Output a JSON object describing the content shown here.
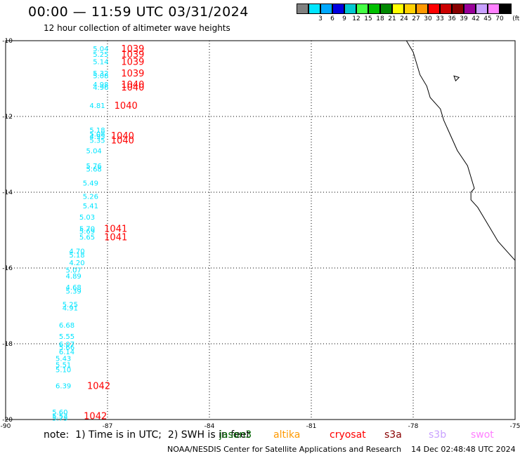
{
  "title": "00:00 — 11:59 UTC 03/31/2024",
  "subtitle": "12 hour collection of altimeter wave heights",
  "color_scale": {
    "unit_label": "(ft)",
    "bins": [
      {
        "color": "#808080",
        "label": ""
      },
      {
        "color": "#00e5ff",
        "label": "3"
      },
      {
        "color": "#00a8ff",
        "label": "6"
      },
      {
        "color": "#0000e0",
        "label": "9"
      },
      {
        "color": "#00c8d0",
        "label": "12"
      },
      {
        "color": "#44ff44",
        "label": "15"
      },
      {
        "color": "#00c000",
        "label": "18"
      },
      {
        "color": "#008800",
        "label": "21"
      },
      {
        "color": "#ffff00",
        "label": "24"
      },
      {
        "color": "#ffd000",
        "label": "27"
      },
      {
        "color": "#ff9900",
        "label": "30"
      },
      {
        "color": "#ff0000",
        "label": "33"
      },
      {
        "color": "#cc0000",
        "label": "36"
      },
      {
        "color": "#880000",
        "label": "39"
      },
      {
        "color": "#990099",
        "label": "42"
      },
      {
        "color": "#c8a0ff",
        "label": "45"
      },
      {
        "color": "#ff80ff",
        "label": "70"
      },
      {
        "color": "#000000",
        "label": ""
      }
    ]
  },
  "map_axes": {
    "lon_range": [
      -90,
      -75
    ],
    "lat_range": [
      -20,
      -10
    ],
    "lon_ticks": [
      {
        "value": -90,
        "label": "-90"
      },
      {
        "value": -87,
        "label": "-87"
      },
      {
        "value": -84,
        "label": "-84"
      },
      {
        "value": -81,
        "label": "-81"
      },
      {
        "value": -78,
        "label": "-78"
      },
      {
        "value": -75,
        "label": "-75"
      }
    ],
    "lat_ticks": [
      {
        "value": -10,
        "label": "-10"
      },
      {
        "value": -12,
        "label": "-12"
      },
      {
        "value": -14,
        "label": "-14"
      },
      {
        "value": -16,
        "label": "-16"
      },
      {
        "value": -18,
        "label": "-18"
      },
      {
        "value": -20,
        "label": "-20"
      }
    ]
  },
  "coastline": {
    "main": [
      [
        -78.2,
        -10.0
      ],
      [
        -78.0,
        -10.3
      ],
      [
        -77.9,
        -10.6
      ],
      [
        -77.8,
        -10.9
      ],
      [
        -77.6,
        -11.2
      ],
      [
        -77.5,
        -11.5
      ],
      [
        -77.2,
        -11.8
      ],
      [
        -77.1,
        -12.1
      ],
      [
        -76.9,
        -12.5
      ],
      [
        -76.7,
        -12.9
      ],
      [
        -76.4,
        -13.3
      ],
      [
        -76.3,
        -13.6
      ],
      [
        -76.2,
        -13.9
      ],
      [
        -76.3,
        -14.0
      ],
      [
        -76.3,
        -14.2
      ],
      [
        -76.1,
        -14.4
      ],
      [
        -75.9,
        -14.7
      ],
      [
        -75.7,
        -15.0
      ],
      [
        -75.5,
        -15.3
      ],
      [
        -75.2,
        -15.6
      ],
      [
        -75.0,
        -15.8
      ]
    ],
    "island": [
      [
        -76.8,
        -10.93
      ],
      [
        -76.65,
        -10.97
      ],
      [
        -76.75,
        -11.06
      ]
    ]
  },
  "wave_obs": [
    {
      "lon": -87.2,
      "lat": -10.2,
      "swh": "5.04",
      "color": "#00e5ff"
    },
    {
      "lon": -87.2,
      "lat": -10.35,
      "swh": "5.25",
      "color": "#00e5ff"
    },
    {
      "lon": -87.2,
      "lat": -10.55,
      "swh": "5.14",
      "color": "#00e5ff"
    },
    {
      "lon": -87.2,
      "lat": -10.85,
      "swh": "5.32",
      "color": "#00e5ff"
    },
    {
      "lon": -87.2,
      "lat": -10.92,
      "swh": "5.08",
      "color": "#00e5ff"
    },
    {
      "lon": -87.2,
      "lat": -11.15,
      "swh": "4.98",
      "color": "#00e5ff"
    },
    {
      "lon": -87.2,
      "lat": -11.22,
      "swh": "4.96",
      "color": "#00e5ff"
    },
    {
      "lon": -87.3,
      "lat": -11.7,
      "swh": "4.81",
      "color": "#00e5ff"
    },
    {
      "lon": -87.3,
      "lat": -12.35,
      "swh": "5.18",
      "color": "#00e5ff"
    },
    {
      "lon": -87.3,
      "lat": -12.45,
      "swh": "5.08",
      "color": "#00e5ff"
    },
    {
      "lon": -87.3,
      "lat": -12.52,
      "swh": "4.95",
      "color": "#00e5ff"
    },
    {
      "lon": -87.3,
      "lat": -12.62,
      "swh": "5.35",
      "color": "#00e5ff"
    },
    {
      "lon": -87.4,
      "lat": -12.9,
      "swh": "5.04",
      "color": "#00e5ff"
    },
    {
      "lon": -87.4,
      "lat": -13.3,
      "swh": "5.76",
      "color": "#00e5ff"
    },
    {
      "lon": -87.4,
      "lat": -13.38,
      "swh": "5.68",
      "color": "#00e5ff"
    },
    {
      "lon": -87.5,
      "lat": -13.75,
      "swh": "5.49",
      "color": "#00e5ff"
    },
    {
      "lon": -87.5,
      "lat": -14.1,
      "swh": "5.26",
      "color": "#00e5ff"
    },
    {
      "lon": -87.5,
      "lat": -14.35,
      "swh": "5.41",
      "color": "#00e5ff"
    },
    {
      "lon": -87.6,
      "lat": -14.65,
      "swh": "5.03",
      "color": "#00e5ff"
    },
    {
      "lon": -87.6,
      "lat": -14.95,
      "swh": "5.70",
      "color": "#00e5ff"
    },
    {
      "lon": -87.6,
      "lat": -15.02,
      "swh": "5.69",
      "color": "#00e5ff"
    },
    {
      "lon": -87.6,
      "lat": -15.18,
      "swh": "5.65",
      "color": "#00e5ff"
    },
    {
      "lon": -87.9,
      "lat": -15.55,
      "swh": "4.70",
      "color": "#00e5ff"
    },
    {
      "lon": -87.9,
      "lat": -15.65,
      "swh": "5.18",
      "color": "#00e5ff"
    },
    {
      "lon": -87.9,
      "lat": -15.85,
      "swh": "4.20",
      "color": "#00e5ff"
    },
    {
      "lon": -88.0,
      "lat": -16.05,
      "swh": "5.07",
      "color": "#00e5ff"
    },
    {
      "lon": -88.0,
      "lat": -16.2,
      "swh": "4.89",
      "color": "#00e5ff"
    },
    {
      "lon": -88.0,
      "lat": -16.5,
      "swh": "4.68",
      "color": "#00e5ff"
    },
    {
      "lon": -88.0,
      "lat": -16.6,
      "swh": "5.39",
      "color": "#00e5ff"
    },
    {
      "lon": -88.1,
      "lat": -16.95,
      "swh": "5.25",
      "color": "#00e5ff"
    },
    {
      "lon": -88.1,
      "lat": -17.05,
      "swh": "4.91",
      "color": "#00e5ff"
    },
    {
      "lon": -88.2,
      "lat": -17.5,
      "swh": "6.68",
      "color": "#00e5ff"
    },
    {
      "lon": -88.2,
      "lat": -17.8,
      "swh": "5.55",
      "color": "#00e5ff"
    },
    {
      "lon": -88.2,
      "lat": -18.0,
      "swh": "6.07",
      "color": "#00e5ff"
    },
    {
      "lon": -88.2,
      "lat": -18.08,
      "swh": "5.66",
      "color": "#00e5ff"
    },
    {
      "lon": -88.2,
      "lat": -18.2,
      "swh": "6.14",
      "color": "#00e5ff"
    },
    {
      "lon": -88.3,
      "lat": -18.38,
      "swh": "5.43",
      "color": "#00e5ff"
    },
    {
      "lon": -88.3,
      "lat": -18.55,
      "swh": "5.51",
      "color": "#00e5ff"
    },
    {
      "lon": -88.3,
      "lat": -18.68,
      "swh": "5.10",
      "color": "#00e5ff"
    },
    {
      "lon": -88.3,
      "lat": -19.1,
      "swh": "6.39",
      "color": "#00e5ff"
    },
    {
      "lon": -88.4,
      "lat": -19.8,
      "swh": "5.60",
      "color": "#00e5ff"
    },
    {
      "lon": -88.4,
      "lat": -19.9,
      "swh": "5.53",
      "color": "#00e5ff"
    },
    {
      "lon": -88.4,
      "lat": -19.95,
      "swh": "5.75",
      "color": "#00e5ff"
    }
  ],
  "pass_labels": [
    {
      "lon": -86.6,
      "lat": -10.2,
      "text": "1039",
      "color": "#ff0000"
    },
    {
      "lon": -86.6,
      "lat": -10.35,
      "text": "1039",
      "color": "#ff0000"
    },
    {
      "lon": -86.6,
      "lat": -10.55,
      "text": "1039",
      "color": "#ff0000"
    },
    {
      "lon": -86.6,
      "lat": -10.85,
      "text": "1039",
      "color": "#ff0000"
    },
    {
      "lon": -86.6,
      "lat": -11.15,
      "text": "1040",
      "color": "#ff0000"
    },
    {
      "lon": -86.6,
      "lat": -11.22,
      "text": "1040",
      "color": "#ff0000"
    },
    {
      "lon": -86.8,
      "lat": -11.7,
      "text": "1040",
      "color": "#ff0000"
    },
    {
      "lon": -86.9,
      "lat": -12.5,
      "text": "1040",
      "color": "#ff0000"
    },
    {
      "lon": -86.9,
      "lat": -12.62,
      "text": "1040",
      "color": "#ff0000"
    },
    {
      "lon": -87.1,
      "lat": -14.95,
      "text": "1041",
      "color": "#ff0000"
    },
    {
      "lon": -87.1,
      "lat": -15.18,
      "text": "1041",
      "color": "#ff0000"
    },
    {
      "lon": -87.6,
      "lat": -19.1,
      "text": "1042",
      "color": "#ff0000"
    },
    {
      "lon": -87.7,
      "lat": -19.9,
      "text": "1042",
      "color": "#ff0000"
    }
  ],
  "footer": {
    "note": "note:  1) Time is in UTC;  2) SWH is in feet",
    "satellites": [
      {
        "name": "jason3",
        "color": "#006600"
      },
      {
        "name": "altika",
        "color": "#ff9900"
      },
      {
        "name": "cryosat",
        "color": "#ff0000"
      },
      {
        "name": "s3a",
        "color": "#880000"
      },
      {
        "name": "s3b",
        "color": "#c8a0ff"
      },
      {
        "name": "swot",
        "color": "#ff80ff"
      }
    ],
    "credit": "NOAA/NESDIS Center for Satellite Applications and Research    14 Dec 02:48:48 UTC 2024"
  }
}
